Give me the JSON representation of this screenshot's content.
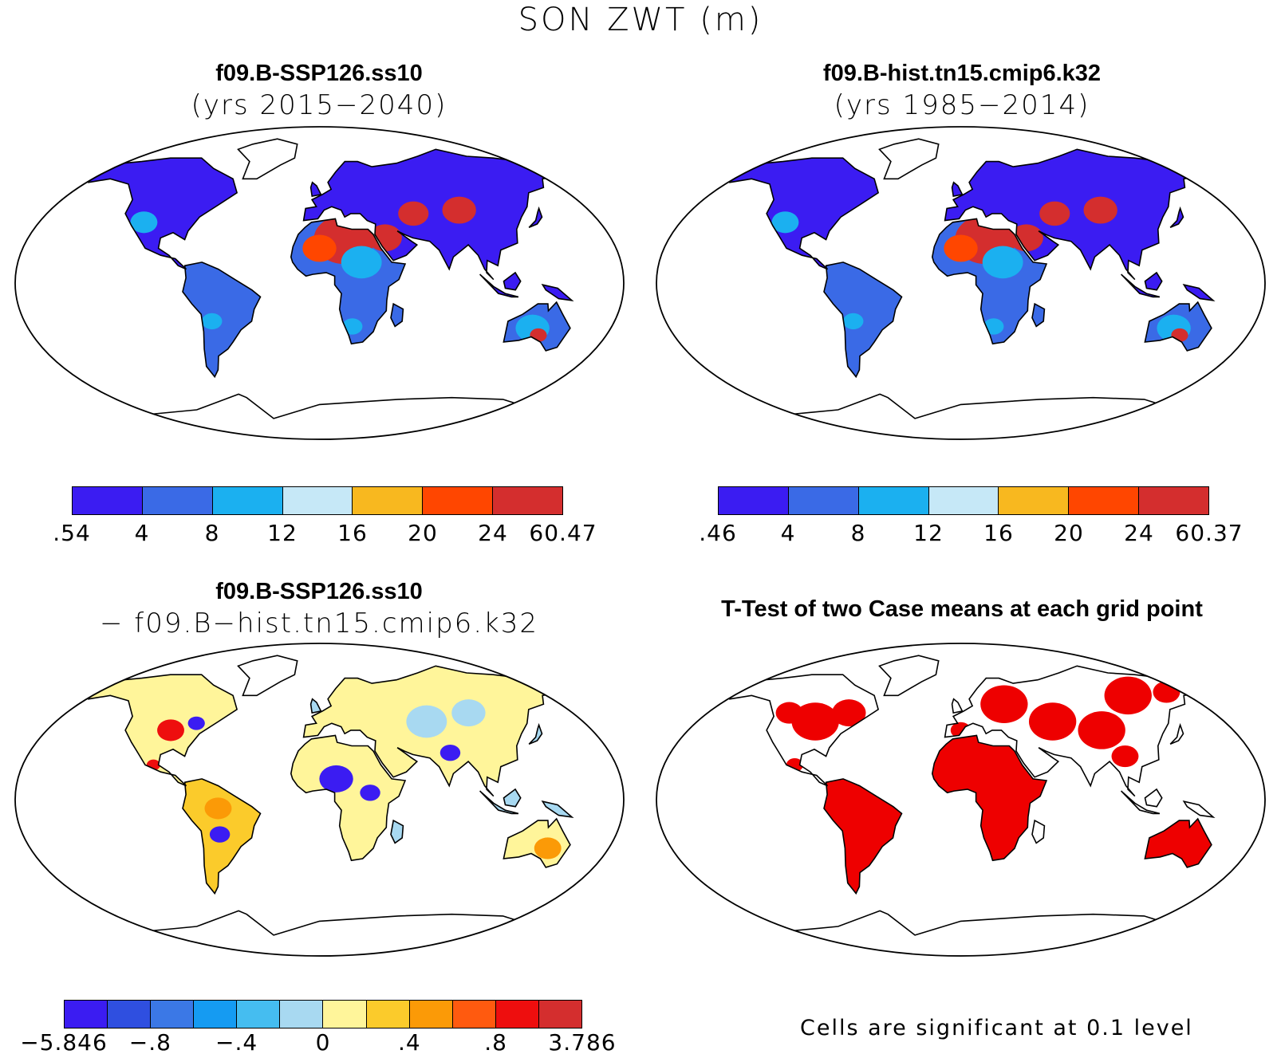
{
  "figure": {
    "main_title": "SON ZWT (m)",
    "footnote": "Cells are significant at 0.1 level"
  },
  "panels": [
    {
      "id": "ssp126",
      "title": "f09.B-SSP126.ss10",
      "subtitle": "(yrs 2015−2040)",
      "colorbar": {
        "colors": [
          "#3b1cf2",
          "#3a6ae6",
          "#1bb0f0",
          "#c6e8f7",
          "#f8b81f",
          "#ff4600",
          "#d42e2e"
        ],
        "tick_labels": [
          ".54",
          "4",
          "8",
          "12",
          "16",
          "20",
          "24",
          "60.47"
        ]
      }
    },
    {
      "id": "hist",
      "title": "f09.B-hist.tn15.cmip6.k32",
      "subtitle": "(yrs 1985−2014)",
      "colorbar": {
        "colors": [
          "#3b1cf2",
          "#3a6ae6",
          "#1bb0f0",
          "#c6e8f7",
          "#f8b81f",
          "#ff4600",
          "#d42e2e"
        ],
        "tick_labels": [
          ".46",
          "4",
          "8",
          "12",
          "16",
          "20",
          "24",
          "60.37"
        ]
      }
    },
    {
      "id": "diff",
      "title": "f09.B-SSP126.ss10",
      "subtitle": "− f09.B−hist.tn15.cmip6.k32",
      "colorbar": {
        "colors": [
          "#3b1cf2",
          "#2f4fe0",
          "#3b78e6",
          "#159bf2",
          "#45bdf0",
          "#a8d9f1",
          "#fff59a",
          "#fbcb2b",
          "#fb9a07",
          "#ff5a0f",
          "#ee0e0e",
          "#d42e2e"
        ],
        "tick_labels": [
          "−5.846",
          "−.8",
          "−.4",
          "0",
          ".4",
          ".8",
          "3.786"
        ]
      }
    },
    {
      "id": "ttest",
      "title": "T-Test of two Case means at each grid point",
      "subtitle": ""
    }
  ],
  "colors": {
    "land_blue": "#3b1cf2",
    "land_red": "#d42e2e",
    "land_yellow": "#fff59a",
    "significant": "#ee0000"
  }
}
